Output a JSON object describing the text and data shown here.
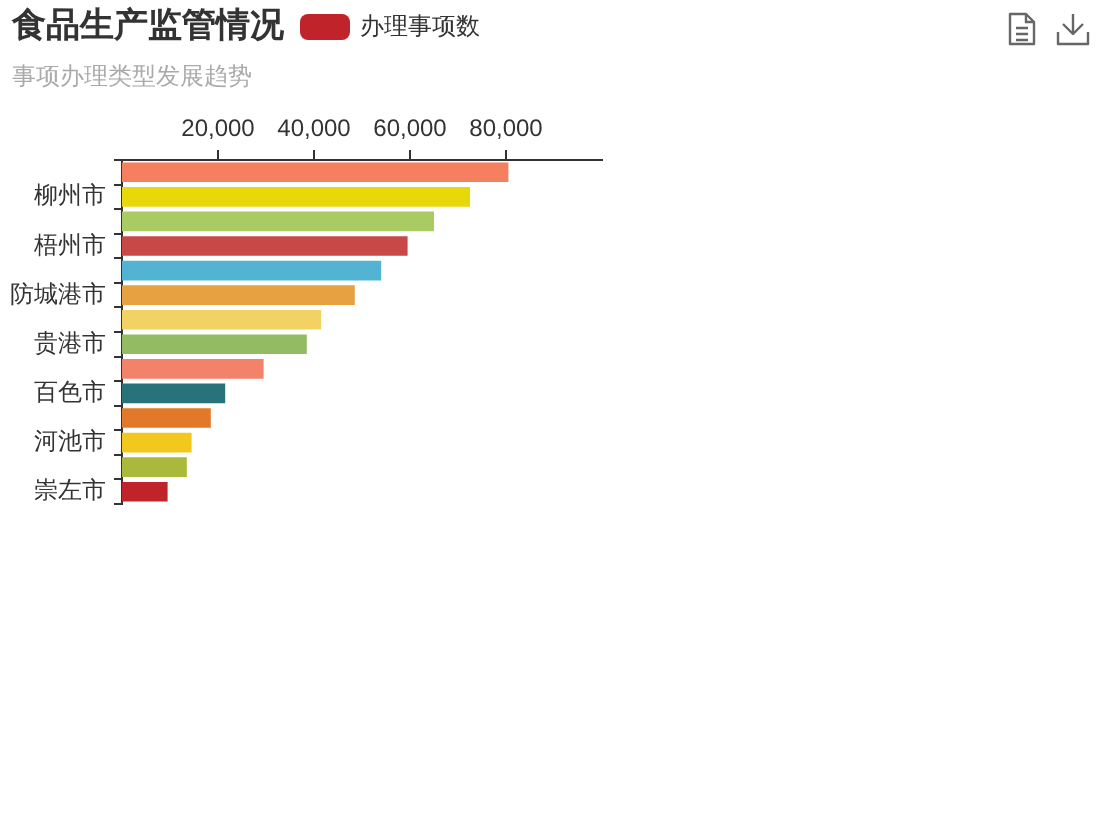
{
  "chart_data": {
    "type": "bar",
    "orientation": "horizontal",
    "title": "食品生产监管情况",
    "subtitle": "事项办理类型发展趋势",
    "categories": [
      null,
      "柳州市",
      null,
      "梧州市",
      null,
      "防城港市",
      null,
      "贵港市",
      null,
      "百色市",
      null,
      "河池市",
      null,
      "崇左市"
    ],
    "series": [
      {
        "name": "办理事项数",
        "color": "#c1232b",
        "colors": [
          "#f4805f",
          "#e8d80a",
          "#aacb64",
          "#c84848",
          "#52b3d3",
          "#e8a140",
          "#f2d263",
          "#92bb63",
          "#f2826a",
          "#27727b",
          "#e2782a",
          "#f3c81c",
          "#aab83c",
          "#c1232b"
        ],
        "values": [
          80500,
          72500,
          65000,
          59500,
          54000,
          48500,
          41500,
          38500,
          29500,
          21500,
          18500,
          14500,
          13500,
          9500
        ]
      }
    ],
    "xlim": [
      0,
      100000
    ],
    "xticks": [
      {
        "value": 20000,
        "label": "20,000"
      },
      {
        "value": 40000,
        "label": "40,000"
      },
      {
        "value": 60000,
        "label": "60,000"
      },
      {
        "value": 80000,
        "label": "80,000"
      }
    ],
    "grid": false,
    "legend": "top right"
  }
}
